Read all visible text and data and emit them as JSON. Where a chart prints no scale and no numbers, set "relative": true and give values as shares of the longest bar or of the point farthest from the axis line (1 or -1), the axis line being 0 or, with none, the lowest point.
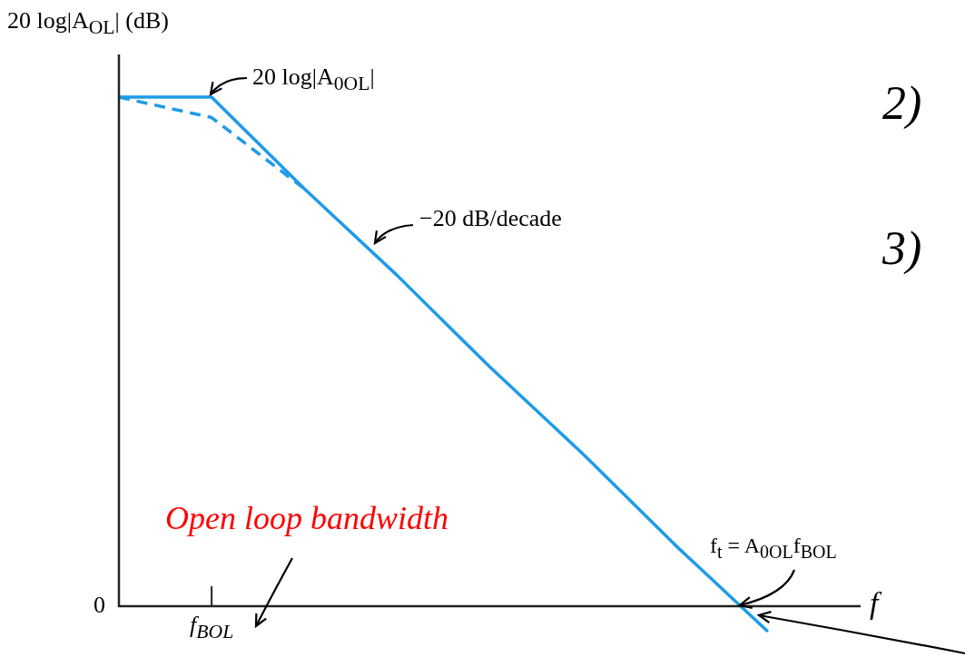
{
  "chart_data": {
    "type": "line",
    "relative": true,
    "ylabel": "20 log|A$_{OL}$| (dB)",
    "xlabel": "f",
    "categories": [
      null,
      null,
      null,
      null,
      null,
      null,
      null,
      null,
      null
    ],
    "series": [
      {
        "color": "#1e9be8",
        "line_style": "solid",
        "values": [
          1,
          1,
          0.82,
          0.65,
          0.47,
          0.3,
          0.12,
          -0.05,
          null
        ]
      },
      {
        "color": "#1e9be8",
        "line_style": "dashed",
        "values": [
          1,
          0.96,
          0.82,
          null,
          null,
          null,
          null,
          null,
          null
        ]
      }
    ],
    "annotations": [
      "20 log|A$_{0OL}$|",
      "−20 dB/decade",
      "Open loop bandwidth",
      "f$_{t}$ = A$_{0OL}$f$_{BOL}$",
      "2)",
      "3)",
      "0",
      "f$_{BOL}$"
    ],
    "legend": false,
    "grid": false,
    "marker": "none"
  }
}
